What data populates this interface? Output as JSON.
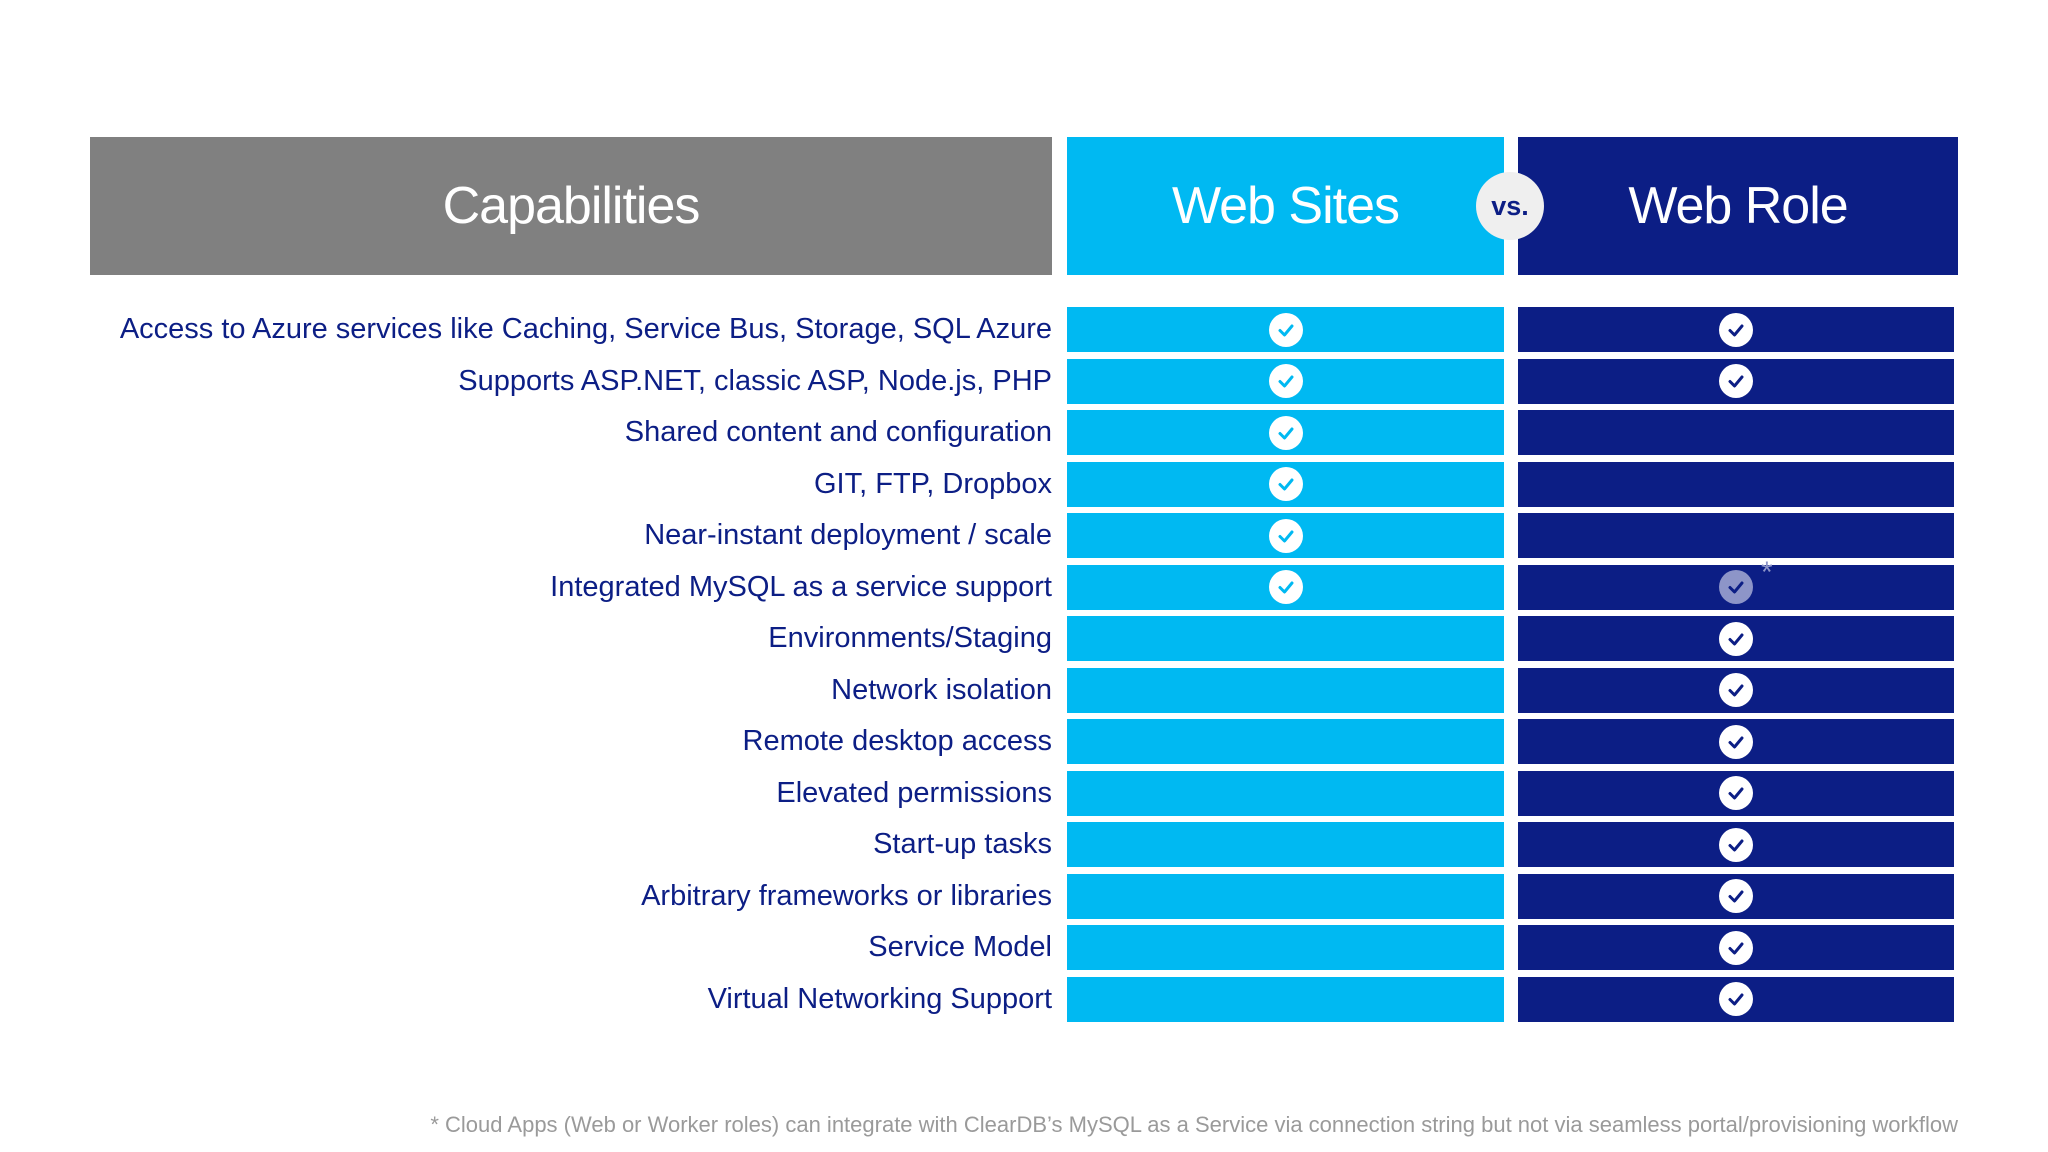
{
  "header": {
    "capabilities": "Capabilities",
    "web_sites": "Web Sites",
    "vs": "vs.",
    "web_role": "Web Role"
  },
  "colors": {
    "gray": "#808080",
    "cyan": "#00b9f2",
    "navy": "#0c1e85"
  },
  "rows": [
    {
      "label": "Access to Azure services like Caching, Service Bus, Storage, SQL Azure",
      "web_sites": true,
      "web_role": true,
      "web_role_note": ""
    },
    {
      "label": "Supports ASP.NET, classic ASP, Node.js, PHP",
      "web_sites": true,
      "web_role": true,
      "web_role_note": ""
    },
    {
      "label": "Shared content and configuration",
      "web_sites": true,
      "web_role": false,
      "web_role_note": ""
    },
    {
      "label": "GIT, FTP, Dropbox",
      "web_sites": true,
      "web_role": false,
      "web_role_note": ""
    },
    {
      "label": "Near-instant deployment / scale",
      "web_sites": true,
      "web_role": false,
      "web_role_note": ""
    },
    {
      "label": "Integrated MySQL as a service support",
      "web_sites": true,
      "web_role": "partial",
      "web_role_note": "*"
    },
    {
      "label": "Environments/Staging",
      "web_sites": false,
      "web_role": true,
      "web_role_note": ""
    },
    {
      "label": "Network isolation",
      "web_sites": false,
      "web_role": true,
      "web_role_note": ""
    },
    {
      "label": "Remote desktop access",
      "web_sites": false,
      "web_role": true,
      "web_role_note": ""
    },
    {
      "label": "Elevated permissions",
      "web_sites": false,
      "web_role": true,
      "web_role_note": ""
    },
    {
      "label": "Start-up tasks",
      "web_sites": false,
      "web_role": true,
      "web_role_note": ""
    },
    {
      "label": "Arbitrary frameworks or libraries",
      "web_sites": false,
      "web_role": true,
      "web_role_note": ""
    },
    {
      "label": "Service Model",
      "web_sites": false,
      "web_role": true,
      "web_role_note": ""
    },
    {
      "label": "Virtual Networking Support",
      "web_sites": false,
      "web_role": true,
      "web_role_note": ""
    }
  ],
  "footnote": "* Cloud Apps (Web or Worker roles) can integrate with ClearDB’s MySQL as a Service via connection string but not via seamless portal/provisioning workflow"
}
